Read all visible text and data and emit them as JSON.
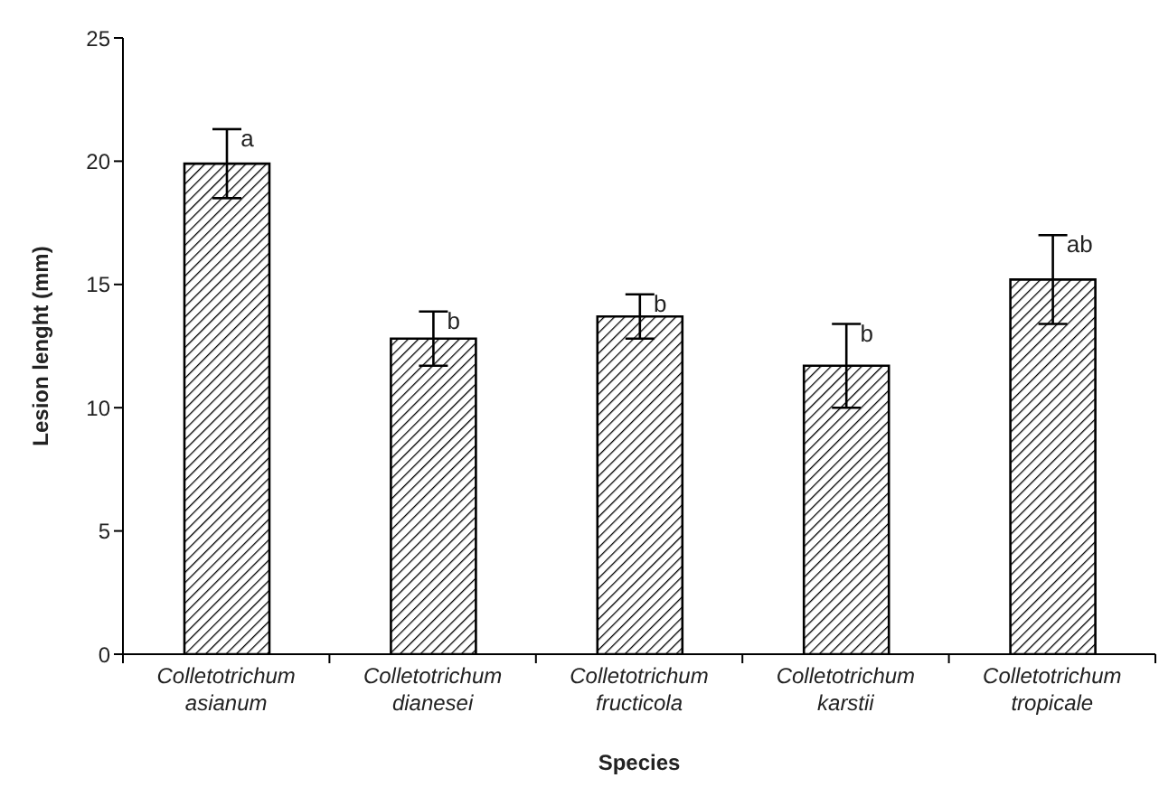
{
  "chart_data": {
    "type": "bar",
    "xlabel": "Species",
    "ylabel": "Lesion lenght (mm)",
    "categories": [
      "Colletotrichum asianum",
      "Colletotrichum dianesei",
      "Colletotrichum fructicola",
      "Colletotrichum karstii",
      "Colletotrichum tropicale"
    ],
    "values": [
      19.9,
      12.8,
      13.7,
      11.7,
      15.2
    ],
    "errors": [
      1.4,
      1.1,
      0.9,
      1.7,
      1.8
    ],
    "color": "#000000",
    "ylim": [
      0,
      25
    ],
    "yticks": [
      0,
      5,
      10,
      15,
      20,
      25
    ],
    "grid": false,
    "annotations": [
      {
        "text": "a",
        "x": "Colletotrichum asianum",
        "y": 21.3
      },
      {
        "text": "b",
        "x": "Colletotrichum dianesei",
        "y": 13.9
      },
      {
        "text": "b",
        "x": "Colletotrichum fructicola",
        "y": 14.6
      },
      {
        "text": "b",
        "x": "Colletotrichum karstii",
        "y": 13.4
      },
      {
        "text": "ab",
        "x": "Colletotrichum tropicale",
        "y": 17.0
      }
    ]
  }
}
